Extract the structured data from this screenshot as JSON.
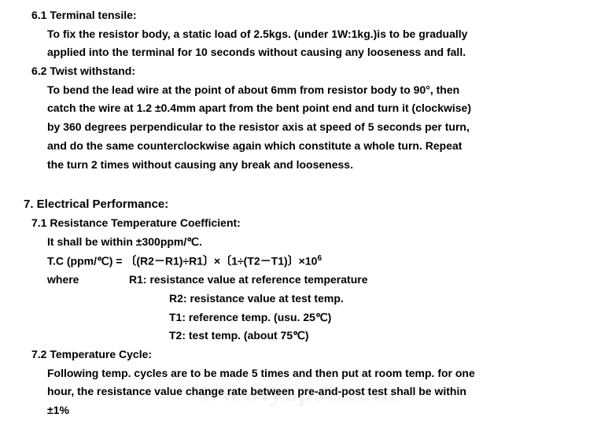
{
  "s6_1": {
    "heading": "6.1 Terminal tensile:",
    "l1": "To fix the resistor body, a static load of 2.5kgs. (under 1W:1kg.)is to be gradually",
    "l2": "applied into the terminal for 10 seconds without causing any looseness and fall."
  },
  "s6_2": {
    "heading": "6.2 Twist withstand:",
    "l1": "To bend the lead wire at the point of about 6mm from resistor body to 90°, then",
    "l2": "catch the wire at 1.2 ±0.4mm apart from the bent point end and turn it (clockwise)",
    "l3": "by 360 degrees perpendicular to the resistor axis at speed of 5 seconds per turn,",
    "l4": "and do the same counterclockwise again which constitute a whole turn. Repeat",
    "l5": "the turn 2 times without causing any break and looseness."
  },
  "s7": {
    "heading": "7. Electrical Performance:"
  },
  "s7_1": {
    "heading": "7.1 Resistance Temperature Coefficient:",
    "l1": "It shall be within ±300ppm/℃.",
    "l2a": "T.C (ppm/℃) = 〔(R2－R1)÷R1〕×〔1÷(T2－T1)〕×10",
    "l2exp": "6",
    "where_label": "where",
    "r1": "R1: resistance value at reference temperature",
    "r2": "R2: resistance value at test temp.",
    "t1": "T1: reference temp. (usu. 25℃)",
    "t2": "T2: test temp. (about 75℃)"
  },
  "s7_2": {
    "heading": "7.2 Temperature Cycle:",
    "l1": "Following temp. cycles are to be made 5 times and then put at room temp. for one",
    "l2": "hour, the resistance value change rate between pre-and-post test shall be within",
    "l3": "±1%"
  },
  "watermark": "www.yzpst.com"
}
